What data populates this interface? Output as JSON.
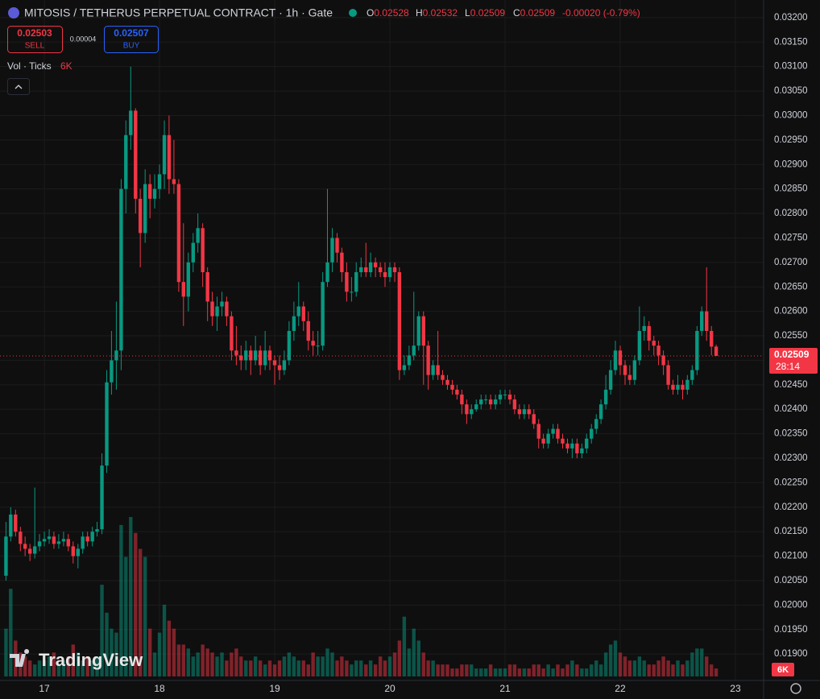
{
  "header": {
    "symbol_title": "MITOSIS / TETHERUS PERPETUAL CONTRACT · 1h · Gate",
    "ohlc": [
      {
        "label": "O",
        "value": "0.02528"
      },
      {
        "label": "H",
        "value": "0.02532"
      },
      {
        "label": "L",
        "value": "0.02509"
      },
      {
        "label": "C",
        "value": "0.02509"
      }
    ],
    "change": "-0.00020 (-0.79%)"
  },
  "trade": {
    "sell_price": "0.02503",
    "sell_label": "SELL",
    "spread": "0.00004",
    "buy_price": "0.02507",
    "buy_label": "BUY"
  },
  "indicator": {
    "name": "Vol · Ticks"
  },
  "watermark": "TradingView",
  "chart_data": {
    "type": "candlestick",
    "x": [
      16.667,
      16.708,
      16.75,
      16.792,
      16.833,
      16.875,
      16.917,
      16.958,
      17,
      17.042,
      17.083,
      17.125,
      17.167,
      17.208,
      17.25,
      17.292,
      17.333,
      17.375,
      17.417,
      17.458,
      17.5,
      17.542,
      17.583,
      17.625,
      17.667,
      17.708,
      17.75,
      17.792,
      17.833,
      17.875,
      17.917,
      17.958,
      18,
      18.042,
      18.083,
      18.125,
      18.167,
      18.208,
      18.25,
      18.292,
      18.333,
      18.375,
      18.417,
      18.458,
      18.5,
      18.542,
      18.583,
      18.625,
      18.667,
      18.708,
      18.75,
      18.792,
      18.833,
      18.875,
      18.917,
      18.958,
      19,
      19.042,
      19.083,
      19.125,
      19.167,
      19.208,
      19.25,
      19.292,
      19.333,
      19.375,
      19.417,
      19.458,
      19.5,
      19.542,
      19.583,
      19.625,
      19.667,
      19.708,
      19.75,
      19.792,
      19.833,
      19.875,
      19.917,
      19.958,
      20,
      20.042,
      20.083,
      20.125,
      20.167,
      20.208,
      20.25,
      20.292,
      20.333,
      20.375,
      20.417,
      20.458,
      20.5,
      20.542,
      20.583,
      20.625,
      20.667,
      20.708,
      20.75,
      20.792,
      20.833,
      20.875,
      20.917,
      20.958,
      21,
      21.042,
      21.083,
      21.125,
      21.167,
      21.208,
      21.25,
      21.292,
      21.333,
      21.375,
      21.417,
      21.458,
      21.5,
      21.542,
      21.583,
      21.625,
      21.667,
      21.708,
      21.75,
      21.792,
      21.833,
      21.875,
      21.917,
      21.958,
      22,
      22.042,
      22.083,
      22.125,
      22.167,
      22.208,
      22.25,
      22.292,
      22.333,
      22.375,
      22.417,
      22.458,
      22.5,
      22.542,
      22.583,
      22.625,
      22.667,
      22.708,
      22.75,
      22.792,
      22.833
    ],
    "open": [
      0.0206,
      0.0214,
      0.02185,
      0.0215,
      0.02125,
      0.02115,
      0.02105,
      0.0212,
      0.0213,
      0.02135,
      0.0214,
      0.02125,
      0.0213,
      0.02135,
      0.0212,
      0.021,
      0.02115,
      0.0214,
      0.0213,
      0.0215,
      0.02155,
      0.02285,
      0.02455,
      0.025,
      0.0252,
      0.0285,
      0.0296,
      0.0301,
      0.0283,
      0.0276,
      0.0286,
      0.0283,
      0.0285,
      0.0288,
      0.0296,
      0.0287,
      0.0286,
      0.0266,
      0.0263,
      0.027,
      0.0274,
      0.0277,
      0.0268,
      0.0262,
      0.0259,
      0.0261,
      0.0262,
      0.0259,
      0.0252,
      0.0251,
      0.025,
      0.0252,
      0.025,
      0.0252,
      0.0249,
      0.0252,
      0.025,
      0.0249,
      0.0248,
      0.025,
      0.0256,
      0.0259,
      0.0261,
      0.0258,
      0.0254,
      0.0253,
      0.0253,
      0.0266,
      0.027,
      0.0275,
      0.0272,
      0.0268,
      0.0264,
      0.0264,
      0.0268,
      0.0269,
      0.0268,
      0.027,
      0.0269,
      0.0268,
      0.0267,
      0.0269,
      0.0268,
      0.0248,
      0.0249,
      0.0251,
      0.0253,
      0.0259,
      0.0253,
      0.0247,
      0.0249,
      0.0247,
      0.0246,
      0.0245,
      0.0244,
      0.0243,
      0.0241,
      0.0239,
      0.024,
      0.0241,
      0.0242,
      0.0242,
      0.0241,
      0.0242,
      0.0243,
      0.0243,
      0.0242,
      0.024,
      0.0239,
      0.024,
      0.0239,
      0.0237,
      0.0234,
      0.0233,
      0.0235,
      0.0236,
      0.0234,
      0.0233,
      0.0232,
      0.0233,
      0.0231,
      0.0232,
      0.0234,
      0.0236,
      0.0238,
      0.0241,
      0.0244,
      0.0248,
      0.0252,
      0.0249,
      0.0247,
      0.0246,
      0.025,
      0.0256,
      0.0257,
      0.0254,
      0.0253,
      0.0251,
      0.0249,
      0.0245,
      0.0244,
      0.0245,
      0.0244,
      0.0246,
      0.0248,
      0.0256,
      0.026,
      0.0256,
      0.02528
    ],
    "high": [
      0.0217,
      0.022,
      0.02195,
      0.0216,
      0.0214,
      0.02125,
      0.0224,
      0.02145,
      0.0215,
      0.02155,
      0.0215,
      0.02145,
      0.0215,
      0.02145,
      0.0213,
      0.02125,
      0.0215,
      0.0215,
      0.0216,
      0.0217,
      0.0231,
      0.0248,
      0.0256,
      0.0262,
      0.0287,
      0.0299,
      0.031,
      0.03015,
      0.0285,
      0.0289,
      0.0288,
      0.0288,
      0.029,
      0.0299,
      0.03,
      0.0295,
      0.0287,
      0.0278,
      0.0272,
      0.0276,
      0.028,
      0.0278,
      0.0269,
      0.0264,
      0.0263,
      0.0264,
      0.0263,
      0.026,
      0.0257,
      0.0253,
      0.0254,
      0.0253,
      0.0255,
      0.0253,
      0.0256,
      0.0253,
      0.0251,
      0.0251,
      0.0252,
      0.0258,
      0.0262,
      0.0266,
      0.0262,
      0.026,
      0.0256,
      0.0256,
      0.0268,
      0.0285,
      0.0277,
      0.0276,
      0.0273,
      0.027,
      0.0267,
      0.027,
      0.0271,
      0.0274,
      0.0272,
      0.0271,
      0.027,
      0.027,
      0.027,
      0.027,
      0.0269,
      0.0251,
      0.0253,
      0.0264,
      0.026,
      0.026,
      0.0254,
      0.025,
      0.0256,
      0.0248,
      0.0247,
      0.0246,
      0.0245,
      0.0244,
      0.0242,
      0.0241,
      0.0242,
      0.0243,
      0.0243,
      0.0243,
      0.0243,
      0.0244,
      0.0244,
      0.0244,
      0.0243,
      0.0241,
      0.0241,
      0.0241,
      0.024,
      0.0238,
      0.0235,
      0.0236,
      0.0237,
      0.0237,
      0.0235,
      0.0234,
      0.0234,
      0.0234,
      0.0233,
      0.0235,
      0.0237,
      0.0239,
      0.0242,
      0.0247,
      0.025,
      0.0254,
      0.0253,
      0.025,
      0.0249,
      0.0251,
      0.0261,
      0.0259,
      0.0258,
      0.0255,
      0.0254,
      0.0252,
      0.025,
      0.0246,
      0.0247,
      0.0246,
      0.0247,
      0.0249,
      0.0257,
      0.0261,
      0.0269,
      0.0257,
      0.02532
    ],
    "low": [
      0.0205,
      0.0213,
      0.0214,
      0.0211,
      0.021,
      0.0209,
      0.02095,
      0.0211,
      0.0212,
      0.02125,
      0.02115,
      0.02115,
      0.0212,
      0.0211,
      0.02085,
      0.02075,
      0.02105,
      0.0212,
      0.0212,
      0.0214,
      0.02145,
      0.0227,
      0.0243,
      0.0244,
      0.0248,
      0.028,
      0.0293,
      0.028,
      0.0269,
      0.0274,
      0.0279,
      0.0281,
      0.0283,
      0.0285,
      0.0284,
      0.0284,
      0.0264,
      0.0257,
      0.026,
      0.0268,
      0.0272,
      0.0265,
      0.0258,
      0.0257,
      0.0256,
      0.0259,
      0.0257,
      0.025,
      0.0249,
      0.0248,
      0.0248,
      0.0247,
      0.0249,
      0.0247,
      0.0248,
      0.0248,
      0.0245,
      0.0246,
      0.0247,
      0.0249,
      0.0254,
      0.0257,
      0.0256,
      0.0252,
      0.0251,
      0.0251,
      0.0252,
      0.0265,
      0.0268,
      0.027,
      0.0266,
      0.0262,
      0.0262,
      0.0263,
      0.0267,
      0.0267,
      0.0267,
      0.0267,
      0.0267,
      0.0265,
      0.0266,
      0.0266,
      0.0246,
      0.0247,
      0.0248,
      0.025,
      0.0252,
      0.0245,
      0.0244,
      0.0246,
      0.0246,
      0.0245,
      0.0244,
      0.0243,
      0.0242,
      0.0239,
      0.0237,
      0.0238,
      0.02395,
      0.024,
      0.0241,
      0.024,
      0.024,
      0.0241,
      0.0242,
      0.0241,
      0.0239,
      0.0238,
      0.0238,
      0.0238,
      0.0236,
      0.0232,
      0.0232,
      0.0232,
      0.0234,
      0.0233,
      0.0232,
      0.0231,
      0.023,
      0.023,
      0.023,
      0.0231,
      0.0233,
      0.0235,
      0.0237,
      0.024,
      0.0243,
      0.0247,
      0.0247,
      0.0245,
      0.0245,
      0.0245,
      0.0249,
      0.0254,
      0.0252,
      0.0251,
      0.0249,
      0.0247,
      0.0244,
      0.0243,
      0.0243,
      0.0242,
      0.0243,
      0.0245,
      0.0247,
      0.0255,
      0.0254,
      0.0251,
      0.02509
    ],
    "close": [
      0.0214,
      0.02185,
      0.0215,
      0.02125,
      0.02115,
      0.02105,
      0.0212,
      0.0213,
      0.02135,
      0.0214,
      0.02125,
      0.0213,
      0.02135,
      0.0212,
      0.021,
      0.02115,
      0.0214,
      0.0213,
      0.0215,
      0.02155,
      0.02285,
      0.02455,
      0.025,
      0.0252,
      0.0285,
      0.0296,
      0.0301,
      0.0283,
      0.0276,
      0.0286,
      0.0283,
      0.0285,
      0.0288,
      0.0296,
      0.0287,
      0.0286,
      0.0266,
      0.0263,
      0.027,
      0.0274,
      0.0277,
      0.0268,
      0.0262,
      0.0259,
      0.0261,
      0.0262,
      0.0259,
      0.0252,
      0.0251,
      0.025,
      0.0252,
      0.025,
      0.0252,
      0.0249,
      0.0252,
      0.025,
      0.0249,
      0.0248,
      0.025,
      0.0256,
      0.0259,
      0.0261,
      0.0258,
      0.0254,
      0.0253,
      0.0253,
      0.0266,
      0.027,
      0.0275,
      0.0272,
      0.0268,
      0.0264,
      0.0264,
      0.0268,
      0.0269,
      0.0268,
      0.027,
      0.0269,
      0.0268,
      0.0267,
      0.0269,
      0.0268,
      0.0248,
      0.0249,
      0.0251,
      0.0253,
      0.0259,
      0.0253,
      0.0247,
      0.0249,
      0.0247,
      0.0246,
      0.0245,
      0.0244,
      0.0243,
      0.0241,
      0.0239,
      0.024,
      0.0241,
      0.0242,
      0.0242,
      0.0241,
      0.0242,
      0.0243,
      0.0243,
      0.0242,
      0.024,
      0.0239,
      0.024,
      0.0239,
      0.0237,
      0.0234,
      0.0233,
      0.0235,
      0.0236,
      0.0234,
      0.0233,
      0.0232,
      0.0233,
      0.0231,
      0.0232,
      0.0234,
      0.0236,
      0.0238,
      0.0241,
      0.0244,
      0.0248,
      0.0252,
      0.0249,
      0.0247,
      0.0246,
      0.025,
      0.0256,
      0.0257,
      0.0254,
      0.0253,
      0.0251,
      0.0249,
      0.0245,
      0.0244,
      0.0245,
      0.0244,
      0.0246,
      0.0248,
      0.0256,
      0.026,
      0.0256,
      0.02528,
      0.02509
    ],
    "volume": [
      36000,
      66000,
      27000,
      18000,
      15000,
      12000,
      9000,
      12000,
      12000,
      15000,
      18000,
      9000,
      12000,
      15000,
      24000,
      18000,
      12000,
      15000,
      12000,
      15000,
      69000,
      48000,
      36000,
      33000,
      114000,
      90000,
      120000,
      108000,
      96000,
      90000,
      36000,
      18000,
      33000,
      54000,
      42000,
      36000,
      24000,
      24000,
      21000,
      15000,
      18000,
      24000,
      21000,
      18000,
      15000,
      18000,
      12000,
      18000,
      21000,
      15000,
      12000,
      12000,
      15000,
      12000,
      9000,
      12000,
      9000,
      12000,
      15000,
      18000,
      15000,
      12000,
      12000,
      9000,
      18000,
      15000,
      15000,
      21000,
      18000,
      12000,
      15000,
      12000,
      9000,
      12000,
      12000,
      9000,
      12000,
      9000,
      15000,
      12000,
      15000,
      18000,
      27000,
      45000,
      21000,
      36000,
      27000,
      18000,
      12000,
      12000,
      9000,
      9000,
      9000,
      6000,
      6000,
      9000,
      9000,
      9000,
      6000,
      6000,
      6000,
      9000,
      6000,
      6000,
      6000,
      9000,
      9000,
      6000,
      6000,
      6000,
      9000,
      9000,
      6000,
      9000,
      6000,
      9000,
      6000,
      9000,
      12000,
      9000,
      6000,
      6000,
      9000,
      12000,
      9000,
      18000,
      24000,
      27000,
      18000,
      15000,
      12000,
      12000,
      15000,
      12000,
      9000,
      9000,
      12000,
      15000,
      12000,
      9000,
      12000,
      9000,
      12000,
      18000,
      21000,
      21000,
      15000,
      9000,
      6000
    ],
    "last_volume_label": "6K",
    "xlim": [
      16.615,
      23.245
    ],
    "xticks": [
      17,
      18,
      19,
      20,
      21,
      22,
      23
    ],
    "ylim": [
      0.01846,
      0.03236
    ],
    "yticks": [
      {
        "value": 0.032,
        "label": "0.03200"
      },
      {
        "value": 0.0315,
        "label": "0.03150"
      },
      {
        "value": 0.031,
        "label": "0.03100"
      },
      {
        "value": 0.0305,
        "label": "0.03050"
      },
      {
        "value": 0.03,
        "label": "0.03000"
      },
      {
        "value": 0.0295,
        "label": "0.02950"
      },
      {
        "value": 0.029,
        "label": "0.02900"
      },
      {
        "value": 0.0285,
        "label": "0.02850"
      },
      {
        "value": 0.028,
        "label": "0.02800"
      },
      {
        "value": 0.0275,
        "label": "0.02750"
      },
      {
        "value": 0.027,
        "label": "0.02700"
      },
      {
        "value": 0.0265,
        "label": "0.02650"
      },
      {
        "value": 0.026,
        "label": "0.02600"
      },
      {
        "value": 0.0255,
        "label": "0.02550"
      },
      {
        "value": 0.025,
        "label": "0.02500"
      },
      {
        "value": 0.0245,
        "label": "0.02450"
      },
      {
        "value": 0.024,
        "label": "0.02400"
      },
      {
        "value": 0.0235,
        "label": "0.02350"
      },
      {
        "value": 0.023,
        "label": "0.02300"
      },
      {
        "value": 0.0225,
        "label": "0.02250"
      },
      {
        "value": 0.022,
        "label": "0.02200"
      },
      {
        "value": 0.0215,
        "label": "0.02150"
      },
      {
        "value": 0.021,
        "label": "0.02100"
      },
      {
        "value": 0.0205,
        "label": "0.02050"
      },
      {
        "value": 0.02,
        "label": "0.02000"
      },
      {
        "value": 0.0195,
        "label": "0.01950"
      },
      {
        "value": 0.019,
        "label": "0.01900"
      }
    ],
    "last_price": 0.02509,
    "countdown": "28:14",
    "up_color": "#089981",
    "down_color": "#f23645",
    "grid": true
  }
}
